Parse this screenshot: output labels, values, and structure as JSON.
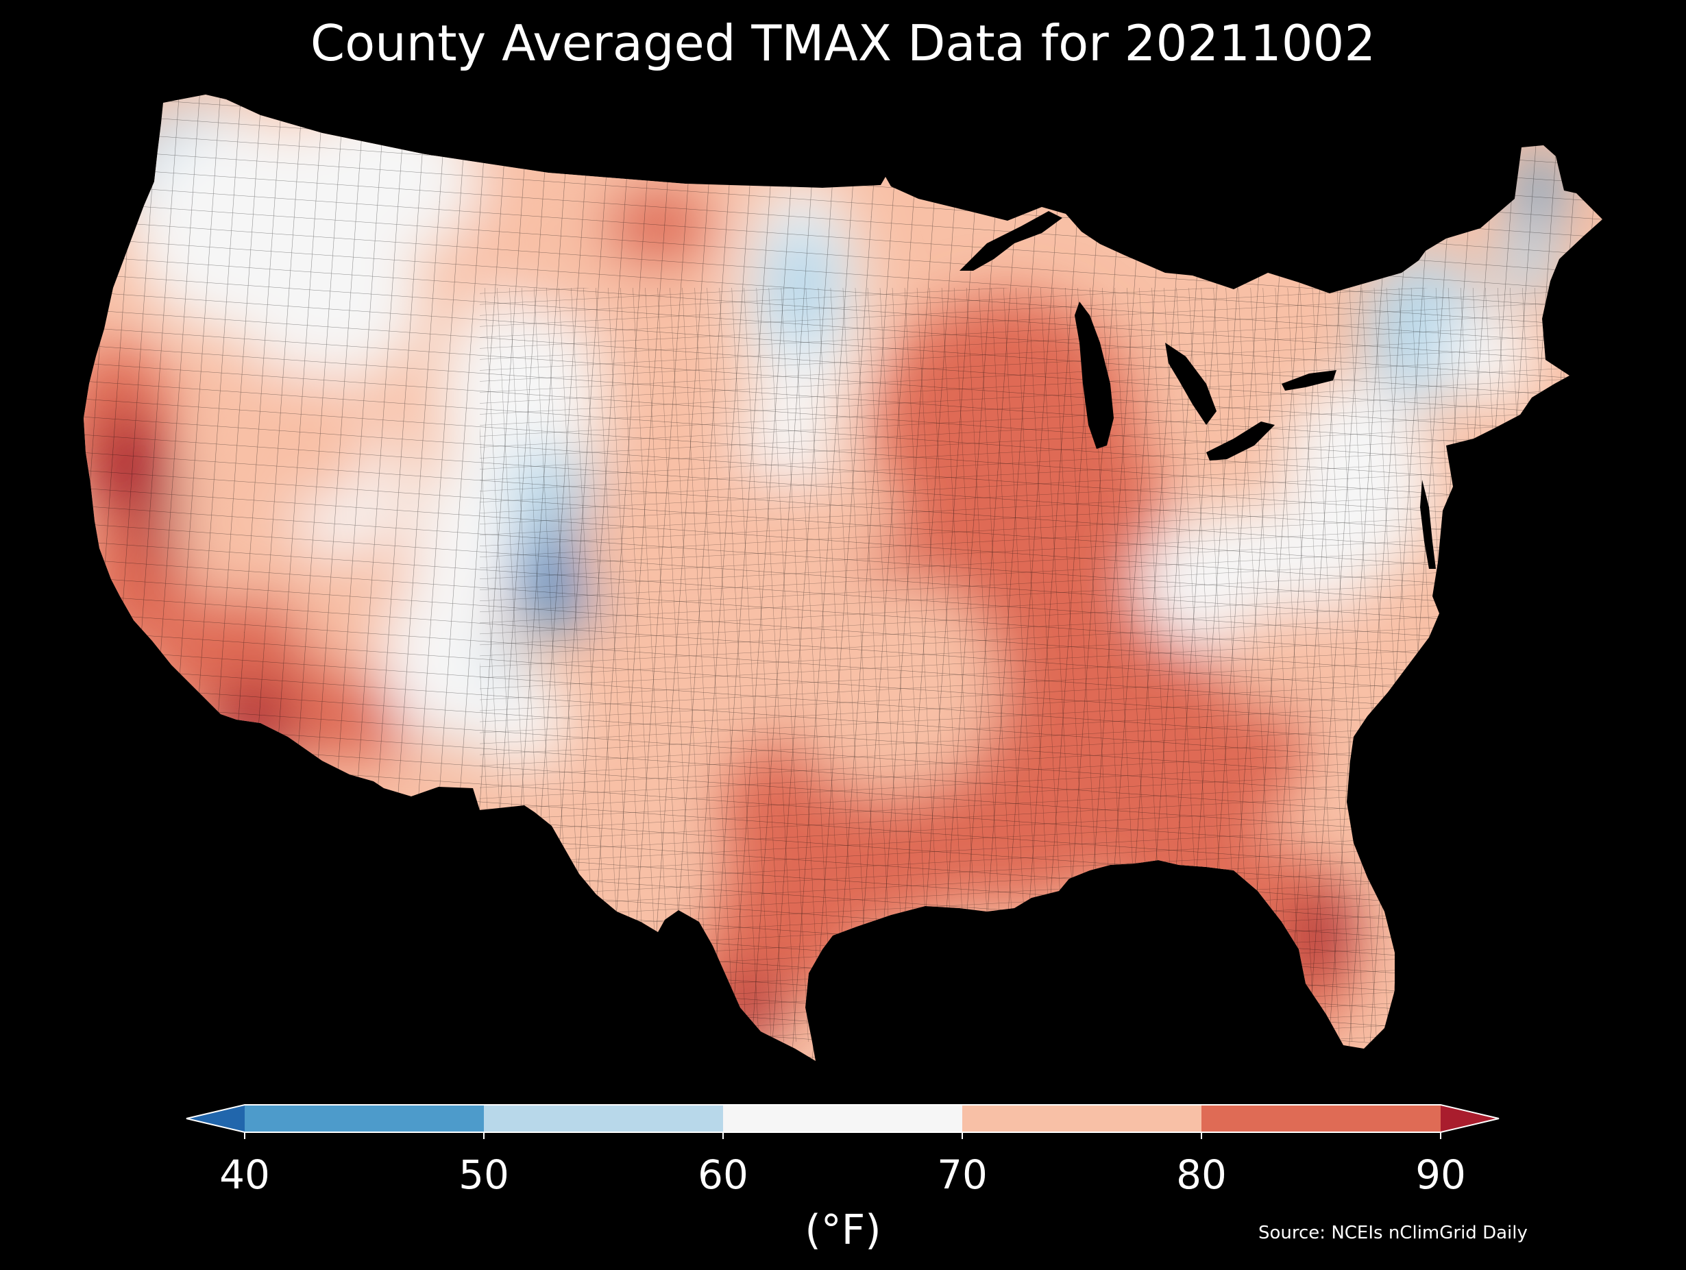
{
  "title": "County Averaged TMAX Data for 20211002",
  "source": "Source: NCEIs nClimGrid Daily",
  "colorbar": {
    "unit": "(°F)",
    "ticks": [
      "40",
      "50",
      "60",
      "70",
      "80",
      "90"
    ],
    "bins": [
      {
        "from": 40,
        "to": 50,
        "color": "#4d9bcb"
      },
      {
        "from": 50,
        "to": 60,
        "color": "#b8d8ea"
      },
      {
        "from": 60,
        "to": 70,
        "color": "#f6f6f6"
      },
      {
        "from": 70,
        "to": 80,
        "color": "#f8c0a6"
      },
      {
        "from": 80,
        "to": 90,
        "color": "#df6b55"
      }
    ],
    "under_color": "#2166ac",
    "over_color": "#a91d2d"
  },
  "map_data": {
    "type": "choropleth",
    "region": "contiguous United States counties",
    "variable": "TMAX",
    "date": "20211002",
    "background": "#000000",
    "regional_bins": [
      {
        "region": "Pacific Northwest",
        "range": "60-70"
      },
      {
        "region": "Northern Plains (Montana, North Dakota)",
        "range": "70-80"
      },
      {
        "region": "Colorado Rockies",
        "range": "40-50"
      },
      {
        "region": "Minnesota",
        "range": "50-70"
      },
      {
        "region": "Upper Midwest (Illinois, Indiana)",
        "range": "80-90"
      },
      {
        "region": "Northern Maine",
        "range": "40-50"
      },
      {
        "region": "New England",
        "range": "50-60"
      },
      {
        "region": "Mid-Atlantic",
        "range": "60-70"
      },
      {
        "region": "Southeast",
        "range": "80-90"
      },
      {
        "region": "Florida",
        "range": "80-90+"
      },
      {
        "region": "Southern Arizona",
        "range": "90+"
      },
      {
        "region": "California Central Valley",
        "range": "90+"
      },
      {
        "region": "South Texas",
        "range": "80-90+"
      }
    ]
  }
}
